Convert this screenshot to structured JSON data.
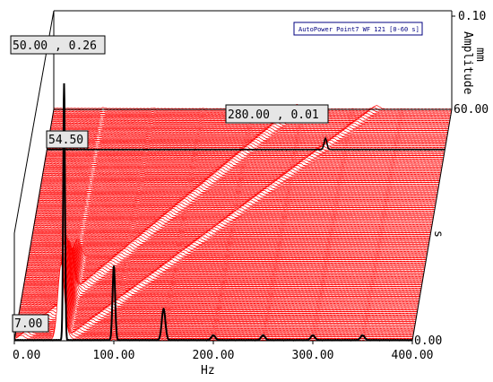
{
  "chart_data": {
    "type": "waterfall",
    "legend": "AutoPower Point7 WF 121 [0-60 s]",
    "xlabel": "Hz",
    "zlabel_name": "Amplitude",
    "zlabel_unit": "mm",
    "ylabel": "s",
    "xlim": [
      0,
      400
    ],
    "ylim": [
      0,
      60
    ],
    "zlim": [
      0,
      0.1
    ],
    "x_ticks": [
      "0.00",
      "100.00",
      "200.00",
      "300.00",
      "400.00"
    ],
    "y_ticks": [
      "0.00",
      "60.00"
    ],
    "z_ticks": [
      "0.10"
    ],
    "grid": false,
    "traces": 121,
    "trace_color": "#ff0000",
    "highlight_color": "#000000",
    "fundamental_hz": [
      7.0,
      54.5
    ],
    "harmonic_hz": [
      50,
      100,
      150,
      200,
      250,
      300,
      350
    ],
    "highlighted_slice_s": [
      0.0,
      49.5
    ],
    "annotations": [
      {
        "text": "50.00 , 0.26",
        "x": 50.0,
        "y": 0.26
      },
      {
        "text": "280.00 , 0.01",
        "x": 280.0,
        "y": 0.01
      },
      {
        "text": "54.50"
      },
      {
        "text": "7.00"
      }
    ]
  }
}
